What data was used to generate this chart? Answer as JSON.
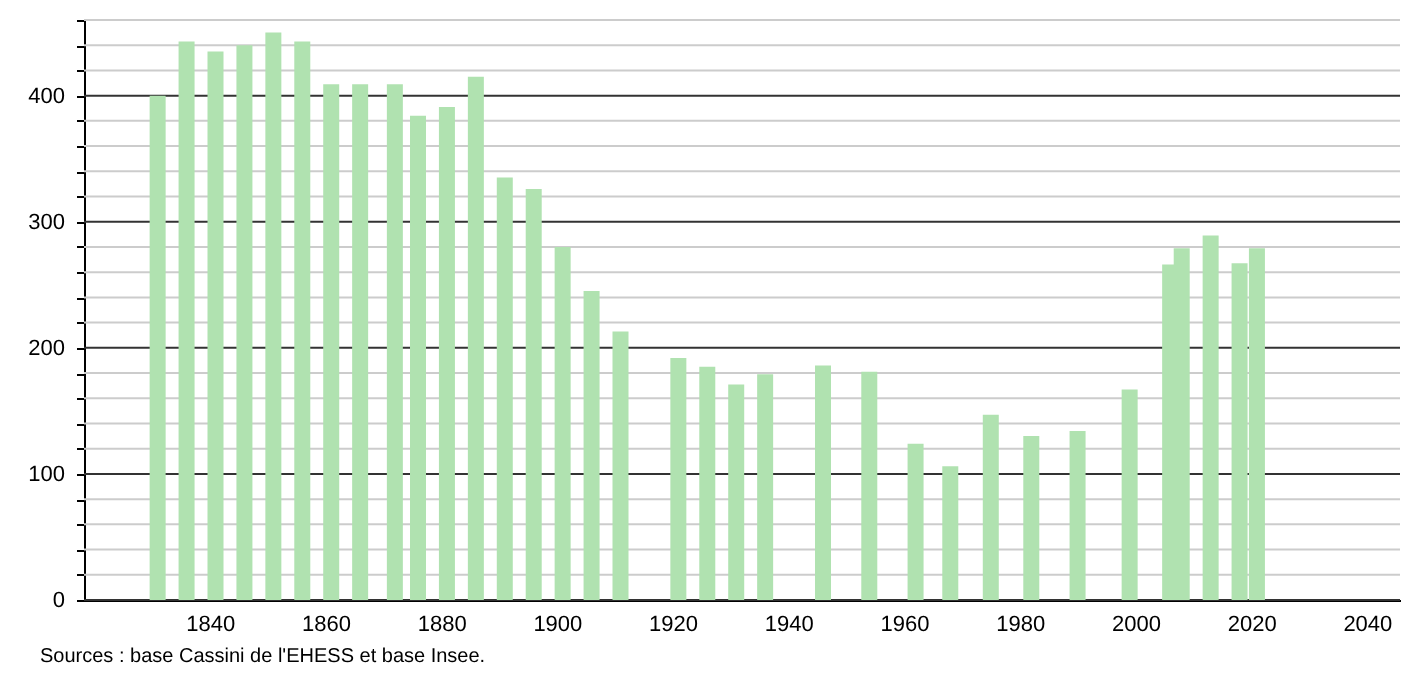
{
  "chart_data": {
    "type": "bar",
    "x": [
      1831,
      1836,
      1841,
      1846,
      1851,
      1856,
      1861,
      1866,
      1872,
      1876,
      1881,
      1886,
      1891,
      1896,
      1901,
      1906,
      1911,
      1921,
      1926,
      1931,
      1936,
      1946,
      1954,
      1962,
      1968,
      1975,
      1982,
      1990,
      1999,
      2006,
      2008,
      2013,
      2018,
      2021
    ],
    "values": [
      400,
      443,
      435,
      440,
      450,
      443,
      409,
      409,
      409,
      384,
      391,
      415,
      335,
      326,
      280,
      245,
      213,
      192,
      185,
      171,
      179,
      186,
      181,
      124,
      106,
      147,
      130,
      134,
      167,
      266,
      279,
      289,
      267,
      279
    ],
    "color": "#b0e2b0",
    "xlim": [
      1820,
      2044
    ],
    "xticks": [
      1840,
      1860,
      1880,
      1900,
      1920,
      1940,
      1960,
      1980,
      2000,
      2020,
      2040
    ],
    "ylim": [
      0,
      460
    ],
    "yticks": [
      0,
      {
        "value": 20,
        "label": null
      },
      {
        "value": 40,
        "label": null
      },
      {
        "value": 60,
        "label": null
      },
      {
        "value": 80,
        "label": null
      },
      100,
      {
        "value": 120,
        "label": null
      },
      {
        "value": 140,
        "label": null
      },
      {
        "value": 160,
        "label": null
      },
      {
        "value": 180,
        "label": null
      },
      200,
      {
        "value": 220,
        "label": null
      },
      {
        "value": 240,
        "label": null
      },
      {
        "value": 260,
        "label": null
      },
      {
        "value": 280,
        "label": null
      },
      300,
      {
        "value": 320,
        "label": null
      },
      {
        "value": 340,
        "label": null
      },
      {
        "value": 360,
        "label": null
      },
      {
        "value": 380,
        "label": null
      },
      400,
      {
        "value": 420,
        "label": null
      },
      {
        "value": 440,
        "label": null
      },
      {
        "value": 460,
        "label": null
      }
    ],
    "grid": "y",
    "annotations": [
      "Sources : base Cassini de l'EHESS et base Insee."
    ]
  }
}
